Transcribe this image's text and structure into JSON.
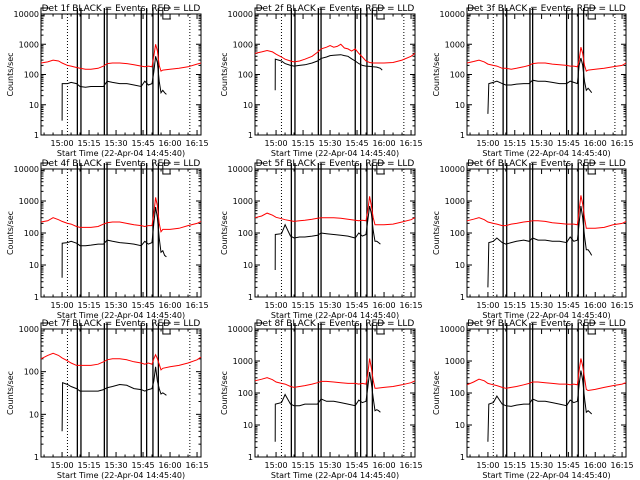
{
  "chart_data": {
    "type": "line",
    "layout": "3x3 grid",
    "ylabel": "Counts/sec",
    "xlabel": "Start Time (22-Apr-04 14:45:40)",
    "xticks": [
      "15:00",
      "15:15",
      "15:30",
      "15:45",
      "16:00",
      "16:15"
    ],
    "xlim_minutes_after_15_00": [
      -11.7,
      77.2
    ],
    "yscale": "log",
    "series_colors": {
      "events": "#000000",
      "lld": "#ff0000"
    },
    "legend_text": "BLACK = Events, RED = LLD",
    "vertical_markers_minutes": {
      "solid": [
        8.5,
        10.5,
        23.5,
        25,
        44,
        47,
        50.5,
        53.5
      ],
      "dotted": [
        3,
        71
      ],
      "short_solid_top": [
        30,
        52
      ]
    },
    "panels": [
      {
        "title": "Det 1f BLACK = Events, RED = LLD",
        "ylim": [
          1,
          10000
        ],
        "yticks": [
          "1",
          "10",
          "100",
          "1000",
          "10000"
        ],
        "x": [
          -11.7,
          -8,
          -5,
          -2,
          0,
          3,
          5,
          8,
          10,
          13,
          16,
          20,
          23,
          25,
          28,
          32,
          36,
          40,
          44,
          46,
          48,
          50,
          51,
          52,
          53,
          54,
          55,
          56,
          60,
          65,
          70,
          75,
          77.2
        ],
        "lld": [
          240,
          260,
          300,
          280,
          240,
          200,
          190,
          170,
          160,
          150,
          150,
          160,
          190,
          230,
          240,
          240,
          230,
          210,
          190,
          180,
          190,
          180,
          400,
          1000,
          600,
          200,
          130,
          140,
          150,
          160,
          180,
          220,
          240
        ],
        "events_x": [
          0,
          0.1,
          3,
          5,
          8,
          10,
          13,
          16,
          20,
          23,
          25,
          28,
          32,
          36,
          40,
          44,
          46,
          48,
          50,
          51,
          52,
          53,
          54,
          55,
          56,
          57,
          58
        ],
        "events": [
          3,
          50,
          50,
          55,
          50,
          40,
          38,
          40,
          40,
          40,
          60,
          55,
          50,
          50,
          45,
          40,
          60,
          45,
          50,
          120,
          400,
          250,
          60,
          25,
          30,
          25,
          22
        ]
      },
      {
        "title": "Det 2f BLACK = Events, RED = LLD",
        "ylim": [
          1,
          10000
        ],
        "yticks": [
          "1",
          "10",
          "100",
          "1000",
          "10000"
        ],
        "x": [
          -11.7,
          -8,
          -5,
          -2,
          0,
          3,
          5,
          8,
          10,
          13,
          16,
          20,
          23,
          25,
          28,
          30,
          32,
          34,
          36,
          38,
          40,
          42,
          44,
          46,
          48,
          50,
          52,
          54,
          56,
          60,
          65,
          70,
          75,
          77.2
        ],
        "lld": [
          500,
          560,
          620,
          560,
          470,
          380,
          320,
          280,
          260,
          280,
          320,
          400,
          540,
          700,
          800,
          900,
          800,
          850,
          1000,
          750,
          700,
          600,
          700,
          500,
          380,
          280,
          250,
          240,
          240,
          240,
          250,
          300,
          400,
          500
        ],
        "events_x": [
          -0.5,
          -0.4,
          3,
          5,
          8,
          10,
          13,
          16,
          20,
          23,
          25,
          28,
          30,
          32,
          34,
          36,
          38,
          40,
          42,
          44,
          46,
          48,
          50,
          52,
          54,
          56,
          58,
          59
        ],
        "events": [
          30,
          320,
          280,
          230,
          200,
          190,
          200,
          210,
          240,
          280,
          340,
          380,
          420,
          430,
          440,
          450,
          420,
          400,
          330,
          280,
          230,
          200,
          190,
          185,
          180,
          175,
          160,
          140
        ]
      },
      {
        "title": "Det 3f BLACK = Events, RED = LLD",
        "ylim": [
          1,
          10000
        ],
        "yticks": [
          "1",
          "10",
          "100",
          "1000",
          "10000"
        ],
        "x": [
          -11.7,
          -8,
          -5,
          -2,
          0,
          3,
          5,
          8,
          10,
          13,
          16,
          20,
          23,
          25,
          28,
          32,
          36,
          40,
          44,
          46,
          48,
          50,
          51,
          52,
          53,
          54,
          55,
          56,
          60,
          65,
          70,
          75,
          77.2
        ],
        "lld": [
          240,
          270,
          300,
          260,
          220,
          200,
          190,
          160,
          160,
          150,
          160,
          180,
          200,
          230,
          240,
          240,
          220,
          210,
          200,
          190,
          190,
          180,
          300,
          800,
          500,
          200,
          130,
          140,
          150,
          160,
          180,
          200,
          240
        ],
        "events_x": [
          0,
          0.5,
          3,
          5,
          8,
          10,
          13,
          16,
          20,
          23,
          25,
          28,
          32,
          36,
          40,
          44,
          46,
          48,
          50,
          51,
          52,
          53,
          54,
          55,
          56,
          57,
          58
        ],
        "events": [
          5,
          50,
          55,
          60,
          50,
          45,
          45,
          48,
          50,
          50,
          65,
          60,
          60,
          55,
          50,
          50,
          60,
          55,
          50,
          200,
          350,
          200,
          60,
          30,
          35,
          30,
          25
        ]
      },
      {
        "title": "Det 4f BLACK = Events, RED = LLD",
        "ylim": [
          1,
          10000
        ],
        "yticks": [
          "1",
          "10",
          "100",
          "1000",
          "10000"
        ],
        "x": [
          -11.7,
          -8,
          -5,
          -2,
          0,
          3,
          5,
          8,
          10,
          13,
          16,
          20,
          23,
          25,
          28,
          32,
          36,
          40,
          44,
          46,
          48,
          50,
          51,
          52,
          53,
          54,
          55,
          56,
          60,
          65,
          70,
          75,
          77.2
        ],
        "lld": [
          220,
          240,
          300,
          260,
          230,
          200,
          190,
          160,
          150,
          150,
          150,
          160,
          190,
          210,
          220,
          220,
          200,
          180,
          170,
          160,
          170,
          170,
          400,
          1300,
          700,
          200,
          110,
          130,
          130,
          140,
          170,
          200,
          230
        ],
        "events_x": [
          0,
          0.1,
          3,
          5,
          8,
          10,
          13,
          16,
          20,
          23,
          25,
          28,
          32,
          36,
          40,
          44,
          46,
          48,
          50,
          51,
          52,
          53,
          54,
          55,
          56,
          57,
          58
        ],
        "events": [
          4,
          48,
          50,
          55,
          48,
          40,
          40,
          42,
          45,
          45,
          60,
          55,
          50,
          48,
          45,
          40,
          55,
          45,
          50,
          200,
          650,
          300,
          70,
          25,
          28,
          20,
          18
        ]
      },
      {
        "title": "Det 5f BLACK = Events, RED = LLD",
        "ylim": [
          1,
          10000
        ],
        "yticks": [
          "1",
          "10",
          "100",
          "1000",
          "10000"
        ],
        "x": [
          -11.7,
          -8,
          -5,
          -2,
          0,
          3,
          5,
          8,
          10,
          13,
          16,
          20,
          23,
          25,
          28,
          32,
          36,
          40,
          44,
          46,
          48,
          50,
          51,
          52,
          53,
          54,
          55,
          56,
          60,
          65,
          70,
          75,
          77.2
        ],
        "lld": [
          300,
          340,
          420,
          360,
          310,
          280,
          260,
          240,
          230,
          240,
          250,
          270,
          290,
          300,
          300,
          300,
          290,
          270,
          250,
          240,
          250,
          240,
          500,
          1400,
          700,
          300,
          180,
          180,
          180,
          190,
          220,
          260,
          300
        ],
        "events_x": [
          -0.5,
          -0.4,
          3,
          5,
          8,
          10,
          13,
          16,
          20,
          23,
          25,
          28,
          32,
          36,
          40,
          44,
          46,
          48,
          50,
          51,
          52,
          53,
          54,
          55,
          56,
          57,
          58
        ],
        "events": [
          7,
          90,
          95,
          180,
          80,
          70,
          75,
          75,
          80,
          85,
          100,
          95,
          90,
          85,
          80,
          70,
          100,
          80,
          90,
          250,
          700,
          400,
          120,
          55,
          55,
          50,
          45
        ]
      },
      {
        "title": "Det 6f BLACK = Events, RED = LLD",
        "ylim": [
          1,
          10000
        ],
        "yticks": [
          "1",
          "10",
          "100",
          "1000",
          "10000"
        ],
        "x": [
          -11.7,
          -8,
          -5,
          -2,
          0,
          3,
          5,
          8,
          10,
          13,
          16,
          20,
          23,
          25,
          28,
          32,
          36,
          40,
          44,
          46,
          48,
          50,
          51,
          52,
          53,
          54,
          55,
          56,
          60,
          65,
          70,
          75,
          77.2
        ],
        "lld": [
          240,
          270,
          300,
          260,
          220,
          200,
          190,
          170,
          170,
          190,
          200,
          220,
          230,
          240,
          240,
          230,
          210,
          200,
          190,
          190,
          190,
          180,
          500,
          1500,
          800,
          300,
          140,
          140,
          140,
          150,
          180,
          200,
          230
        ],
        "events_x": [
          0,
          0.5,
          3,
          5,
          8,
          10,
          13,
          16,
          20,
          23,
          25,
          28,
          32,
          36,
          40,
          44,
          46,
          48,
          50,
          51,
          52,
          53,
          54,
          55,
          56,
          57,
          58
        ],
        "events": [
          2,
          50,
          55,
          70,
          50,
          45,
          50,
          55,
          60,
          55,
          70,
          60,
          60,
          55,
          55,
          50,
          75,
          55,
          60,
          200,
          700,
          300,
          80,
          30,
          30,
          25,
          20
        ]
      },
      {
        "title": "Det 7f BLACK = Events, RED = LLD",
        "ylim": [
          1,
          1000
        ],
        "yticks": [
          "1",
          "10",
          "100",
          "1000"
        ],
        "x": [
          -11.7,
          -8,
          -5,
          -2,
          0,
          3,
          5,
          8,
          10,
          13,
          16,
          20,
          23,
          25,
          28,
          32,
          36,
          40,
          44,
          46,
          48,
          50,
          51,
          52,
          53,
          54,
          55,
          56,
          60,
          65,
          70,
          75,
          77.2
        ],
        "lld": [
          200,
          240,
          270,
          240,
          210,
          180,
          160,
          140,
          140,
          140,
          140,
          150,
          170,
          190,
          200,
          200,
          190,
          170,
          160,
          150,
          160,
          150,
          200,
          250,
          200,
          150,
          110,
          120,
          130,
          140,
          160,
          190,
          220
        ],
        "events_x": [
          0,
          0.3,
          3,
          5,
          8,
          10,
          13,
          16,
          20,
          23,
          25,
          28,
          32,
          36,
          40,
          44,
          46,
          48,
          50,
          51,
          52,
          53,
          54,
          55,
          56,
          57,
          58
        ],
        "events": [
          4,
          55,
          50,
          45,
          40,
          35,
          35,
          35,
          35,
          38,
          42,
          45,
          50,
          48,
          40,
          38,
          35,
          38,
          40,
          60,
          130,
          60,
          40,
          30,
          32,
          30,
          28
        ]
      },
      {
        "title": "Det 8f BLACK = Events, RED = LLD",
        "ylim": [
          1,
          10000
        ],
        "yticks": [
          "1",
          "10",
          "100",
          "1000",
          "10000"
        ],
        "x": [
          -11.7,
          -8,
          -5,
          -2,
          0,
          3,
          5,
          8,
          10,
          13,
          16,
          20,
          23,
          25,
          28,
          32,
          36,
          40,
          44,
          46,
          48,
          50,
          51,
          52,
          53,
          54,
          55,
          56,
          60,
          65,
          70,
          75,
          77.2
        ],
        "lld": [
          240,
          270,
          300,
          260,
          220,
          200,
          190,
          160,
          150,
          160,
          170,
          190,
          210,
          230,
          230,
          220,
          210,
          200,
          200,
          190,
          200,
          190,
          400,
          1200,
          600,
          250,
          140,
          140,
          150,
          160,
          180,
          210,
          240
        ],
        "events_x": [
          -0.5,
          -0.4,
          3,
          5,
          8,
          10,
          13,
          16,
          20,
          23,
          25,
          28,
          32,
          36,
          40,
          44,
          46,
          48,
          50,
          51,
          52,
          53,
          54,
          55,
          56,
          57,
          58
        ],
        "events": [
          3,
          45,
          50,
          90,
          45,
          40,
          40,
          45,
          45,
          45,
          65,
          55,
          55,
          50,
          45,
          40,
          60,
          50,
          55,
          150,
          450,
          200,
          70,
          28,
          30,
          28,
          25
        ]
      },
      {
        "title": "Det 9f BLACK = Events, RED = LLD",
        "ylim": [
          1,
          10000
        ],
        "yticks": [
          "1",
          "10",
          "100",
          "1000",
          "10000"
        ],
        "x": [
          -11.7,
          -8,
          -5,
          -2,
          0,
          3,
          5,
          8,
          10,
          13,
          16,
          20,
          23,
          25,
          28,
          32,
          36,
          40,
          44,
          46,
          48,
          50,
          51,
          52,
          53,
          54,
          55,
          56,
          60,
          65,
          70,
          75,
          77.2
        ],
        "lld": [
          180,
          220,
          270,
          240,
          200,
          180,
          170,
          150,
          140,
          150,
          160,
          180,
          200,
          220,
          220,
          210,
          200,
          190,
          190,
          180,
          190,
          180,
          500,
          1200,
          700,
          300,
          130,
          120,
          130,
          150,
          170,
          190,
          210
        ],
        "events_x": [
          0,
          0.5,
          3,
          5,
          8,
          10,
          13,
          16,
          20,
          23,
          25,
          28,
          32,
          36,
          40,
          44,
          46,
          48,
          50,
          51,
          52,
          53,
          54,
          55,
          56,
          57,
          58
        ],
        "events": [
          3,
          45,
          50,
          80,
          45,
          40,
          38,
          42,
          45,
          45,
          65,
          55,
          55,
          50,
          45,
          40,
          60,
          50,
          55,
          180,
          500,
          250,
          70,
          25,
          28,
          25,
          22
        ]
      }
    ]
  }
}
